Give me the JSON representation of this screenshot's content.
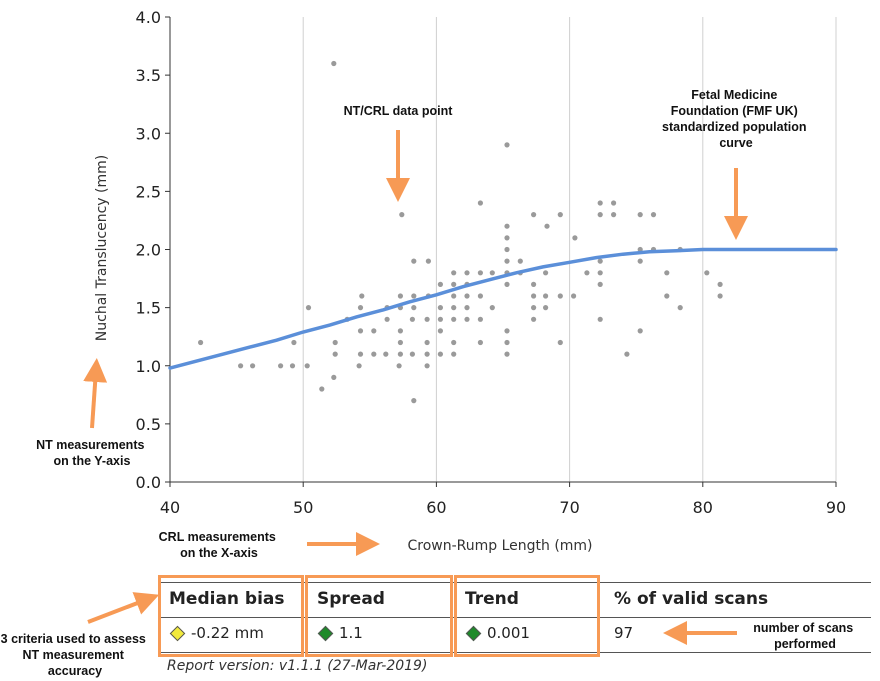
{
  "chart_data": {
    "type": "scatter",
    "xlabel": "Crown-Rump Length (mm)",
    "ylabel": "Nuchal Translucency (mm)",
    "xlim": [
      40,
      90
    ],
    "ylim": [
      0.0,
      4.0
    ],
    "xticks": [
      "40",
      "50",
      "60",
      "70",
      "80",
      "90"
    ],
    "yticks": [
      "0.0",
      "0.5",
      "1.0",
      "1.5",
      "2.0",
      "2.5",
      "3.0",
      "3.5",
      "4.0"
    ],
    "grid": "vertical",
    "points": [
      [
        42.3,
        1.2
      ],
      [
        45.3,
        1.0
      ],
      [
        46.2,
        1.0
      ],
      [
        48.3,
        1.0
      ],
      [
        49.2,
        1.0
      ],
      [
        49.3,
        1.2
      ],
      [
        50.3,
        1.0
      ],
      [
        50.4,
        1.5
      ],
      [
        51.4,
        0.8
      ],
      [
        52.3,
        0.9
      ],
      [
        52.4,
        1.1
      ],
      [
        52.4,
        1.2
      ],
      [
        52.3,
        3.6
      ],
      [
        53.3,
        1.4
      ],
      [
        54.2,
        1.0
      ],
      [
        54.3,
        1.1
      ],
      [
        54.3,
        1.3
      ],
      [
        54.3,
        1.5
      ],
      [
        54.4,
        1.6
      ],
      [
        55.3,
        1.1
      ],
      [
        55.3,
        1.3
      ],
      [
        56.2,
        1.1
      ],
      [
        56.3,
        1.4
      ],
      [
        56.3,
        1.5
      ],
      [
        57.2,
        1.0
      ],
      [
        57.3,
        1.1
      ],
      [
        57.3,
        1.2
      ],
      [
        57.3,
        1.3
      ],
      [
        57.3,
        1.5
      ],
      [
        57.3,
        1.6
      ],
      [
        57.4,
        2.3
      ],
      [
        58.2,
        1.1
      ],
      [
        58.2,
        1.4
      ],
      [
        58.3,
        1.5
      ],
      [
        58.3,
        1.6
      ],
      [
        58.3,
        0.7
      ],
      [
        58.3,
        1.9
      ],
      [
        59.3,
        1.0
      ],
      [
        59.3,
        1.1
      ],
      [
        59.3,
        1.2
      ],
      [
        59.3,
        1.4
      ],
      [
        59.4,
        1.6
      ],
      [
        59.4,
        1.9
      ],
      [
        60.3,
        1.1
      ],
      [
        60.3,
        1.3
      ],
      [
        60.3,
        1.4
      ],
      [
        60.3,
        1.5
      ],
      [
        60.3,
        1.7
      ],
      [
        61.3,
        1.1
      ],
      [
        61.3,
        1.2
      ],
      [
        61.3,
        1.4
      ],
      [
        61.3,
        1.5
      ],
      [
        61.3,
        1.6
      ],
      [
        61.3,
        1.7
      ],
      [
        61.3,
        1.8
      ],
      [
        62.3,
        1.4
      ],
      [
        62.3,
        1.5
      ],
      [
        62.3,
        1.6
      ],
      [
        62.3,
        1.7
      ],
      [
        62.3,
        1.8
      ],
      [
        63.3,
        1.2
      ],
      [
        63.3,
        1.4
      ],
      [
        63.3,
        1.6
      ],
      [
        63.3,
        1.8
      ],
      [
        63.3,
        2.4
      ],
      [
        64.2,
        1.5
      ],
      [
        64.2,
        1.8
      ],
      [
        65.3,
        1.1
      ],
      [
        65.3,
        1.2
      ],
      [
        65.3,
        1.3
      ],
      [
        65.3,
        1.7
      ],
      [
        65.3,
        1.8
      ],
      [
        65.3,
        1.9
      ],
      [
        65.3,
        2.0
      ],
      [
        65.3,
        2.1
      ],
      [
        65.3,
        2.2
      ],
      [
        65.3,
        2.9
      ],
      [
        66.3,
        1.8
      ],
      [
        66.3,
        1.9
      ],
      [
        67.3,
        1.4
      ],
      [
        67.3,
        1.5
      ],
      [
        67.3,
        1.6
      ],
      [
        67.3,
        1.7
      ],
      [
        67.3,
        2.3
      ],
      [
        68.2,
        1.5
      ],
      [
        68.2,
        1.6
      ],
      [
        68.2,
        1.8
      ],
      [
        68.3,
        2.2
      ],
      [
        69.3,
        1.2
      ],
      [
        69.3,
        1.6
      ],
      [
        69.3,
        2.3
      ],
      [
        70.3,
        1.6
      ],
      [
        70.4,
        2.1
      ],
      [
        71.3,
        1.8
      ],
      [
        72.3,
        1.4
      ],
      [
        72.3,
        1.7
      ],
      [
        72.3,
        1.8
      ],
      [
        72.3,
        1.9
      ],
      [
        72.3,
        2.3
      ],
      [
        72.3,
        2.4
      ],
      [
        73.3,
        2.3
      ],
      [
        73.3,
        2.4
      ],
      [
        74.3,
        1.1
      ],
      [
        75.3,
        1.3
      ],
      [
        75.3,
        1.9
      ],
      [
        75.3,
        2.0
      ],
      [
        75.3,
        2.3
      ],
      [
        76.3,
        2.0
      ],
      [
        76.3,
        2.3
      ],
      [
        77.3,
        1.6
      ],
      [
        77.3,
        1.8
      ],
      [
        78.3,
        1.5
      ],
      [
        78.3,
        2.0
      ],
      [
        80.3,
        1.8
      ],
      [
        81.3,
        1.6
      ],
      [
        81.3,
        1.7
      ]
    ],
    "curve": [
      [
        40,
        0.98
      ],
      [
        42,
        1.04
      ],
      [
        44,
        1.1
      ],
      [
        46,
        1.16
      ],
      [
        48,
        1.22
      ],
      [
        50,
        1.29
      ],
      [
        52,
        1.35
      ],
      [
        54,
        1.42
      ],
      [
        56,
        1.48
      ],
      [
        58,
        1.55
      ],
      [
        60,
        1.61
      ],
      [
        62,
        1.68
      ],
      [
        64,
        1.74
      ],
      [
        66,
        1.8
      ],
      [
        68,
        1.85
      ],
      [
        70,
        1.89
      ],
      [
        72,
        1.93
      ],
      [
        74,
        1.96
      ],
      [
        76,
        1.98
      ],
      [
        78,
        1.99
      ],
      [
        80,
        2.0
      ],
      [
        82,
        2.0
      ],
      [
        84,
        2.0
      ],
      [
        86,
        2.0
      ],
      [
        88,
        2.0
      ],
      [
        90,
        2.0
      ]
    ],
    "colors": {
      "points": "#9a9a9a",
      "curve": "#5b8fd9",
      "annotation_arrow": "#f79a55"
    }
  },
  "annotations": {
    "datapoint": [
      "NT/CRL data point"
    ],
    "fmf_curve": [
      "Fetal Medicine",
      "Foundation (FMF UK)",
      "standardized population",
      "curve"
    ],
    "y_axis_note": [
      "NT measurements",
      "on the Y-axis"
    ],
    "x_axis_note": [
      "CRL measurements",
      "on the X-axis"
    ],
    "criteria_note": [
      "3 criteria used to assess",
      "NT measurement",
      "accuracy"
    ],
    "scans_note": [
      "number of scans",
      "performed"
    ]
  },
  "metrics": {
    "median_bias": {
      "label": "Median bias",
      "value": "-0.22 mm",
      "indicator_color": "#f2ea3c"
    },
    "spread": {
      "label": "Spread",
      "value": "1.1",
      "indicator_color": "#1e8a2a"
    },
    "trend": {
      "label": "Trend",
      "value": "0.001",
      "indicator_color": "#1e8a2a"
    },
    "valid_scans": {
      "label": "% of valid scans",
      "value": "97"
    }
  },
  "report_version": "Report version: v1.1.1  (27-Mar-2019)"
}
